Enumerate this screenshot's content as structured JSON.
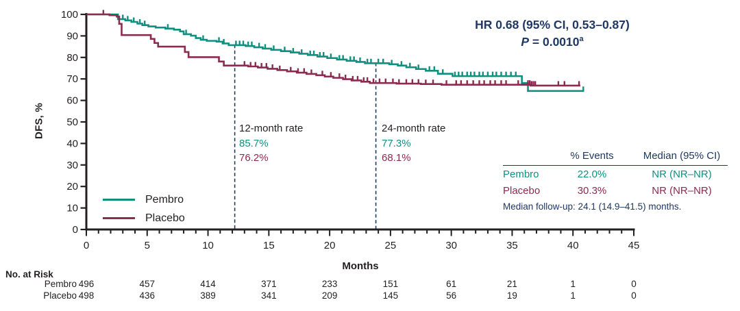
{
  "palette": {
    "teal": "#0E8F80",
    "maroon": "#8C2A4F",
    "navy": "#1F3864",
    "ink": "#231F20"
  },
  "annotations": {
    "hr_line1": "HR 0.68 (95% CI, 0.53–0.87)",
    "p_label": "P",
    "p_eq": " = 0.0010",
    "p_sup": "a",
    "rate12": {
      "title": "12-month rate",
      "pembro": "85.7%",
      "placebo": "76.2%"
    },
    "rate24": {
      "title": "24-month rate",
      "pembro": "77.3%",
      "placebo": "68.1%"
    }
  },
  "legend": {
    "pembro": "Pembro",
    "placebo": "Placebo"
  },
  "summary": {
    "headers": [
      "% Events",
      "Median (95% CI)"
    ],
    "rows": [
      {
        "name": "Pembro",
        "events": "22.0%",
        "median": "NR (NR–NR)"
      },
      {
        "name": "Placebo",
        "events": "30.3%",
        "median": "NR (NR–NR)"
      }
    ],
    "footnote": "Median follow-up: 24.1 (14.9–41.5) months."
  },
  "risk": {
    "title": "No. at Risk",
    "rows": [
      {
        "name": "Pembro",
        "counts": [
          "496",
          "457",
          "414",
          "371",
          "233",
          "151",
          "61",
          "21",
          "1",
          "0"
        ]
      },
      {
        "name": "Placebo",
        "counts": [
          "498",
          "436",
          "389",
          "341",
          "209",
          "145",
          "56",
          "19",
          "1",
          "0"
        ]
      }
    ]
  },
  "chart_data": {
    "type": "line",
    "subtype": "kaplan-meier-step",
    "title": "",
    "xlabel": "Months",
    "ylabel": "DFS, %",
    "xlim": [
      0,
      45
    ],
    "xtick_step": 5,
    "xminor_step": 1,
    "ylim": [
      0,
      100
    ],
    "ytick_step": 10,
    "grid": false,
    "legend_position": "lower-left",
    "dashed_lines": [
      {
        "x": 12.2,
        "top": 85.9
      },
      {
        "x": 23.8,
        "top": 77.5
      }
    ],
    "series": [
      {
        "name": "Pembro",
        "color": "#0E8F80",
        "points": [
          [
            0,
            100
          ],
          [
            2.6,
            97.8
          ],
          [
            3.2,
            97.2
          ],
          [
            3.7,
            96.5
          ],
          [
            4.2,
            95.7
          ],
          [
            4.6,
            95.0
          ],
          [
            5.1,
            94.4
          ],
          [
            5.7,
            93.9
          ],
          [
            6.5,
            93.4
          ],
          [
            7.2,
            92.9
          ],
          [
            7.7,
            92.1
          ],
          [
            8.0,
            90.8
          ],
          [
            8.6,
            90.1
          ],
          [
            9.0,
            89.0
          ],
          [
            9.4,
            88.2
          ],
          [
            9.9,
            87.7
          ],
          [
            10.7,
            87.3
          ],
          [
            11.2,
            86.5
          ],
          [
            11.7,
            85.7
          ],
          [
            13.1,
            85.3
          ],
          [
            13.8,
            84.7
          ],
          [
            14.5,
            84.1
          ],
          [
            15.2,
            83.5
          ],
          [
            16.0,
            82.9
          ],
          [
            16.8,
            82.3
          ],
          [
            17.5,
            81.7
          ],
          [
            18.2,
            81.1
          ],
          [
            19.0,
            80.4
          ],
          [
            19.8,
            79.7
          ],
          [
            20.6,
            79.0
          ],
          [
            21.4,
            78.4
          ],
          [
            22.2,
            77.9
          ],
          [
            22.9,
            77.3
          ],
          [
            24.9,
            76.8
          ],
          [
            25.6,
            76.2
          ],
          [
            26.3,
            75.4
          ],
          [
            27.1,
            74.6
          ],
          [
            27.9,
            73.8
          ],
          [
            28.9,
            72.4
          ],
          [
            30.1,
            71.3
          ],
          [
            35.8,
            68.1
          ],
          [
            36.3,
            64.4
          ],
          [
            40.9,
            64.4
          ]
        ],
        "censor": [
          3.0,
          3.4,
          3.9,
          4.4,
          4.8,
          6.7,
          8.2,
          9.6,
          10.9,
          11.3,
          12.3,
          12.6,
          12.9,
          13.3,
          13.6,
          14.2,
          14.7,
          15.4,
          16.3,
          17.0,
          17.7,
          18.4,
          18.7,
          19.2,
          19.5,
          20.1,
          20.8,
          21.1,
          21.7,
          22.0,
          22.5,
          23.1,
          23.4,
          24.0,
          24.4,
          25.1,
          25.9,
          26.6,
          27.3,
          28.2,
          28.6,
          29.3,
          30.3,
          30.6,
          30.9,
          31.3,
          31.6,
          31.9,
          32.3,
          32.6,
          33.0,
          33.4,
          33.7,
          34.1,
          34.5,
          34.9,
          35.3,
          40.85
        ]
      },
      {
        "name": "Placebo",
        "color": "#8C2A4F",
        "points": [
          [
            0,
            100
          ],
          [
            1.9,
            99.6
          ],
          [
            2.5,
            99.0
          ],
          [
            2.7,
            95.6
          ],
          [
            2.9,
            90.4
          ],
          [
            5.3,
            88.6
          ],
          [
            5.6,
            86.7
          ],
          [
            5.9,
            85.0
          ],
          [
            8.1,
            82.5
          ],
          [
            8.4,
            80.1
          ],
          [
            10.9,
            78.1
          ],
          [
            11.3,
            76.2
          ],
          [
            13.3,
            75.8
          ],
          [
            14.1,
            75.3
          ],
          [
            14.9,
            74.7
          ],
          [
            15.7,
            74.1
          ],
          [
            16.5,
            73.5
          ],
          [
            17.3,
            72.9
          ],
          [
            18.1,
            72.3
          ],
          [
            18.9,
            71.7
          ],
          [
            19.6,
            71.1
          ],
          [
            20.3,
            70.5
          ],
          [
            21.1,
            69.9
          ],
          [
            21.8,
            69.3
          ],
          [
            22.6,
            68.7
          ],
          [
            23.3,
            68.1
          ],
          [
            25.5,
            67.8
          ],
          [
            27.5,
            67.6
          ],
          [
            29.2,
            67.3
          ],
          [
            36.5,
            66.9
          ],
          [
            40.6,
            66.9
          ]
        ],
        "censor": [
          1.4,
          13.0,
          13.5,
          13.9,
          14.4,
          14.8,
          15.3,
          15.9,
          16.8,
          17.4,
          17.9,
          18.5,
          19.4,
          20.1,
          20.8,
          21.3,
          21.9,
          22.3,
          22.8,
          23.1,
          23.6,
          24.1,
          24.6,
          25.2,
          25.7,
          26.3,
          26.8,
          27.3,
          27.9,
          28.5,
          29.6,
          30.4,
          30.8,
          31.3,
          31.8,
          32.3,
          32.7,
          33.2,
          33.6,
          34.1,
          34.5,
          35.5,
          36.3,
          36.45,
          36.6,
          36.75,
          36.9,
          38.8,
          39.3,
          40.5
        ]
      }
    ]
  }
}
